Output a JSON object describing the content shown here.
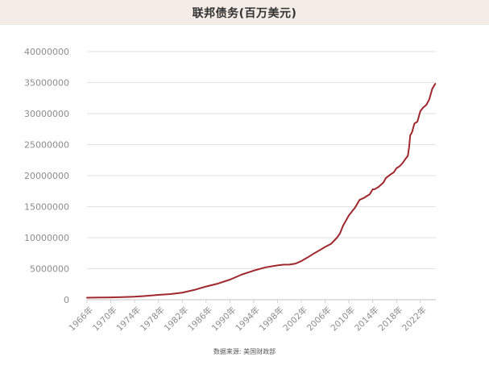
{
  "colors": {
    "header_bg": "#f4ece6",
    "line": "#a0282d",
    "grid": "#e2e2e2",
    "axis": "#cfcfcf",
    "tick_text": "#8c8c8c"
  },
  "source_text": "数据来源: 美国财政部",
  "chart_data": {
    "type": "line",
    "title": "联邦债务(百万美元)",
    "xlabel": "",
    "ylabel": "",
    "grid": "horizontal",
    "ylim": [
      0,
      40000000
    ],
    "xlim": [
      1966,
      2024.6
    ],
    "yticks": [
      {
        "value": 0,
        "label": "0"
      },
      {
        "value": 5000000,
        "label": "5000000"
      },
      {
        "value": 10000000,
        "label": "10000000"
      },
      {
        "value": 15000000,
        "label": "15000000"
      },
      {
        "value": 20000000,
        "label": "20000000"
      },
      {
        "value": 25000000,
        "label": "25000000"
      },
      {
        "value": 30000000,
        "label": "30000000"
      },
      {
        "value": 35000000,
        "label": "35000000"
      },
      {
        "value": 40000000,
        "label": "40000000"
      }
    ],
    "xticks": [
      {
        "value": 1966,
        "label": "1966年"
      },
      {
        "value": 1970,
        "label": "1970年"
      },
      {
        "value": 1974,
        "label": "1974年"
      },
      {
        "value": 1978,
        "label": "1978年"
      },
      {
        "value": 1982,
        "label": "1982年"
      },
      {
        "value": 1986,
        "label": "1986年"
      },
      {
        "value": 1990,
        "label": "1990年"
      },
      {
        "value": 1994,
        "label": "1994年"
      },
      {
        "value": 1998,
        "label": "1998年"
      },
      {
        "value": 2002,
        "label": "2002年"
      },
      {
        "value": 2006,
        "label": "2006年"
      },
      {
        "value": 2010,
        "label": "2010年"
      },
      {
        "value": 2014,
        "label": "2014年"
      },
      {
        "value": 2018,
        "label": "2018年"
      },
      {
        "value": 2022,
        "label": "2022年"
      }
    ],
    "series": [
      {
        "x": [
          1966,
          1968,
          1970,
          1972,
          1974,
          1976,
          1978,
          1980,
          1982,
          1984,
          1986,
          1988,
          1990,
          1992,
          1994,
          1996,
          1998,
          1999,
          2000,
          2001,
          2002,
          2003,
          2004,
          2005,
          2006,
          2007,
          2008,
          2008.5,
          2009,
          2010,
          2011,
          2011.8,
          2012.5,
          2013,
          2013.5,
          2014,
          2014.3,
          2015,
          2015.8,
          2016.2,
          2017,
          2017.5,
          2018,
          2018.5,
          2019,
          2019.5,
          2019.9,
          2020.1,
          2020.3,
          2020.6,
          2021,
          2021.5,
          2022,
          2022.5,
          2023,
          2023.5,
          2024,
          2024.5
        ],
        "y": [
          320000,
          350000,
          380000,
          430000,
          480000,
          620000,
          780000,
          910000,
          1140000,
          1570000,
          2130000,
          2600000,
          3230000,
          4060000,
          4690000,
          5220000,
          5530000,
          5650000,
          5670000,
          5810000,
          6230000,
          6780000,
          7380000,
          7930000,
          8510000,
          9010000,
          10000000,
          10700000,
          11900000,
          13600000,
          14800000,
          16100000,
          16400000,
          16700000,
          17000000,
          17800000,
          17800000,
          18200000,
          18900000,
          19600000,
          20200000,
          20500000,
          21200000,
          21500000,
          22000000,
          22700000,
          23200000,
          24500000,
          26500000,
          27000000,
          28400000,
          28700000,
          30400000,
          31000000,
          31400000,
          32300000,
          34000000,
          34800000
        ]
      }
    ]
  }
}
